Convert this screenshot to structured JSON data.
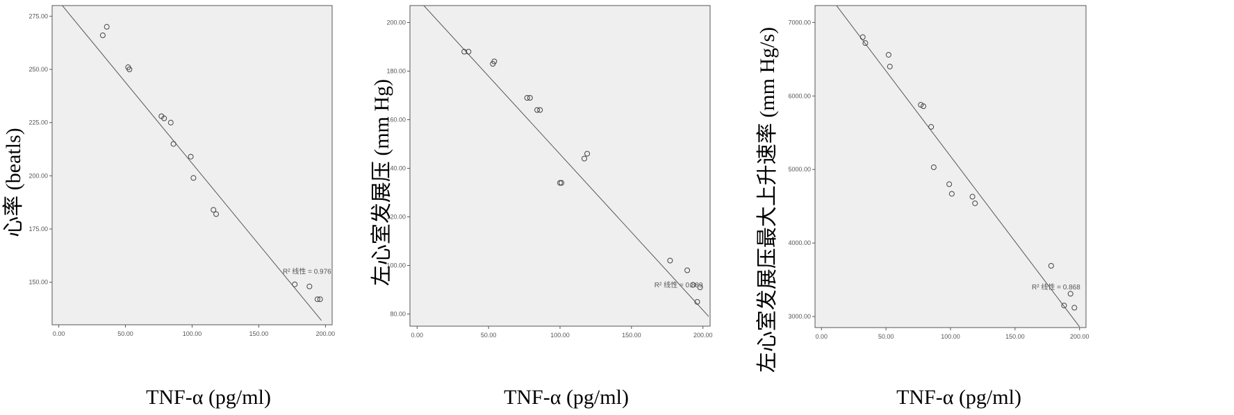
{
  "chart_data": [
    {
      "type": "scatter",
      "xlabel": "TNF-α (pg/ml)",
      "ylabel": "心率 (beatls)",
      "xlim": [
        -5,
        205
      ],
      "ylim": [
        130,
        280
      ],
      "xticks": [
        0,
        50,
        100,
        150,
        200
      ],
      "yticks": [
        150,
        175,
        200,
        225,
        250,
        275
      ],
      "xtick_labels": [
        "0.00",
        "50.00",
        "100.00",
        "150.00",
        "200.00"
      ],
      "ytick_labels": [
        "150.00",
        "175.00",
        "200.00",
        "225.00",
        "250.00",
        "275.00"
      ],
      "fit_line": {
        "x": [
          0,
          197
        ],
        "y": [
          282,
          132
        ]
      },
      "annotation": {
        "text": "R² 线性 = 0.976",
        "x": 168,
        "y": 154
      },
      "points": {
        "x": [
          33,
          36,
          52,
          53,
          77,
          79,
          84,
          86,
          99,
          101,
          116,
          118,
          177,
          188,
          194,
          196
        ],
        "y": [
          266,
          270,
          251,
          250,
          228,
          227,
          225,
          215,
          209,
          199,
          184,
          182,
          149,
          148,
          142,
          142
        ]
      }
    },
    {
      "type": "scatter",
      "xlabel": "TNF-α (pg/ml)",
      "ylabel": "左心室发展压 (mm Hg)",
      "xlim": [
        -5,
        205
      ],
      "ylim": [
        75,
        207
      ],
      "xticks": [
        0,
        50,
        100,
        150,
        200
      ],
      "yticks": [
        80,
        100,
        120,
        140,
        160,
        180,
        200
      ],
      "xtick_labels": [
        "0.00",
        "50.00",
        "100.00",
        "150.00",
        "200.00"
      ],
      "ytick_labels": [
        "80.00",
        "100.00",
        "120.00",
        "140.00",
        "160.00",
        "180.00",
        "200.00"
      ],
      "fit_line": {
        "x": [
          0,
          204
        ],
        "y": [
          210,
          79
        ]
      },
      "annotation": {
        "text": "R² 线性 = 0.889",
        "x": 166,
        "y": 91
      },
      "points": {
        "x": [
          33,
          36,
          53,
          54,
          77,
          79,
          84,
          86,
          100,
          101,
          117,
          119,
          177,
          189,
          193,
          196,
          198
        ],
        "y": [
          188,
          188,
          183,
          184,
          169,
          169,
          164,
          164,
          134,
          134,
          144,
          146,
          102,
          98,
          92,
          85,
          91
        ]
      }
    },
    {
      "type": "scatter",
      "xlabel": "TNF-α (pg/ml)",
      "ylabel": "左心室发展压最大上升速率 (mm Hg/s)",
      "xlim": [
        -5,
        205
      ],
      "ylim": [
        2850,
        7230
      ],
      "xticks": [
        0,
        50,
        100,
        150,
        200
      ],
      "yticks": [
        3000,
        4000,
        5000,
        6000,
        7000
      ],
      "xtick_labels": [
        "0.00",
        "50.00",
        "100.00",
        "150.00",
        "200.00"
      ],
      "ytick_labels": [
        "3000.00",
        "4000.00",
        "5000.00",
        "6000.00",
        "7000.00"
      ],
      "fit_line": {
        "x": [
          0,
          200
        ],
        "y": [
          7500,
          2860
        ]
      },
      "annotation": {
        "text": "R² 线性 = 0.868",
        "x": 163,
        "y": 3370
      },
      "points": {
        "x": [
          32,
          34,
          52,
          53,
          77,
          79,
          85,
          87,
          99,
          101,
          117,
          119,
          178,
          188,
          193,
          196
        ],
        "y": [
          6800,
          6720,
          6560,
          6400,
          5880,
          5860,
          5580,
          5030,
          4800,
          4670,
          4630,
          4540,
          3690,
          3150,
          3310,
          3120
        ]
      }
    }
  ]
}
